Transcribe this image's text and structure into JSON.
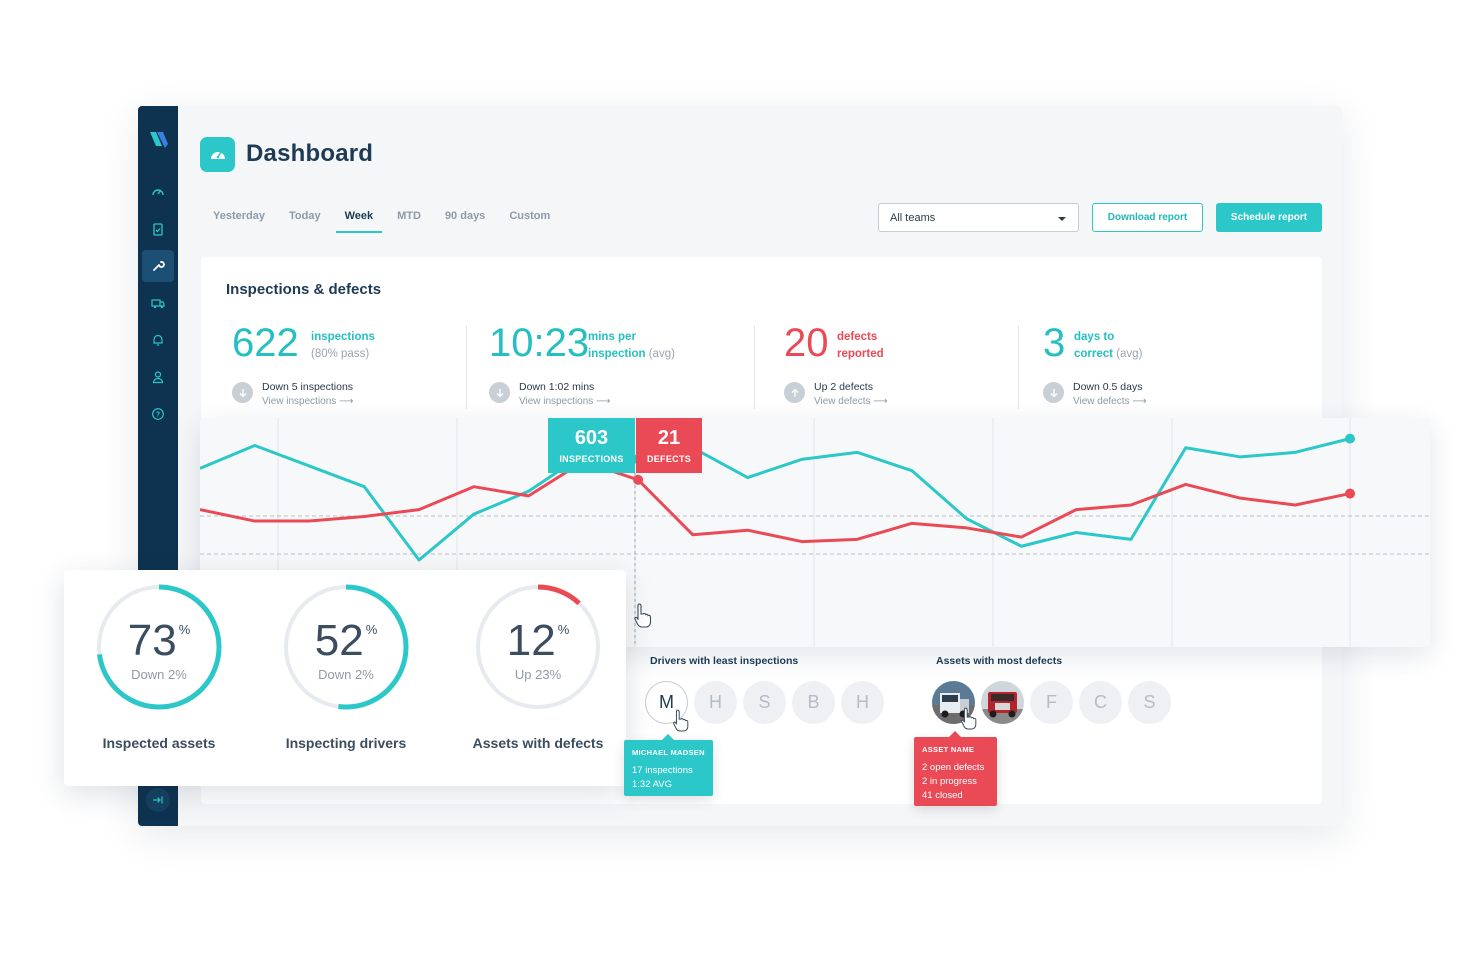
{
  "header": {
    "title": "Dashboard"
  },
  "tabs": [
    "Yesterday",
    "Today",
    "Week",
    "MTD",
    "90 days",
    "Custom"
  ],
  "active_tab": "Week",
  "team_select": {
    "value": "All teams"
  },
  "buttons": {
    "download": "Download report",
    "schedule": "Schedule report"
  },
  "card": {
    "title": "Inspections & defects",
    "stats": [
      {
        "value": "622",
        "label1": "inspections",
        "label2": "(80% pass)",
        "delta": "Down 5 inspections",
        "link": "View inspections",
        "color": "#25bfc2"
      },
      {
        "value": "10:23",
        "label1": "mins per",
        "label2a": "inspection",
        "label2b": "(avg)",
        "delta": "Down 1:02 mins",
        "link": "View inspections",
        "color": "#25bfc2"
      },
      {
        "value": "20",
        "label1": "defects",
        "label2": "reported",
        "delta": "Up 2 defects",
        "link": "View defects",
        "color": "#ea4a55"
      },
      {
        "value": "3",
        "label1": "days to",
        "label2a": "correct",
        "label2b": "(avg)",
        "delta": "Down 0.5 days",
        "link": "View defects",
        "color": "#25bfc2"
      }
    ],
    "drivers": {
      "title": "Drivers with least inspections",
      "initials": [
        "M",
        "H",
        "S",
        "B",
        "H"
      ]
    },
    "assets": {
      "title": "Assets with most defects",
      "initials": [
        "F",
        "C",
        "S"
      ]
    }
  },
  "chart_tooltip": {
    "inspections": "603",
    "inspections_label": "INSPECTIONS",
    "defects": "21",
    "defects_label": "DEFECTS"
  },
  "chart_data": {
    "type": "line",
    "series": [
      {
        "name": "Inspections",
        "color": "#2cc7c9",
        "values": [
          0.78,
          0.88,
          0.79,
          0.7,
          0.38,
          0.58,
          0.68,
          0.84,
          0.82,
          0.87,
          0.74,
          0.82,
          0.85,
          0.77,
          0.56,
          0.44,
          0.5,
          0.47,
          0.87,
          0.83,
          0.85,
          0.91
        ]
      },
      {
        "name": "Defects",
        "color": "#ea4a55",
        "values": [
          0.6,
          0.55,
          0.55,
          0.57,
          0.6,
          0.7,
          0.66,
          0.81,
          0.73,
          0.49,
          0.51,
          0.46,
          0.47,
          0.54,
          0.52,
          0.48,
          0.6,
          0.62,
          0.71,
          0.65,
          0.62,
          0.67
        ]
      }
    ]
  },
  "gauges": [
    {
      "value": "73",
      "sub": "Down 2%",
      "label": "Inspected assets",
      "percent": 73,
      "color": "#2cc7c9"
    },
    {
      "value": "52",
      "sub": "Down 2%",
      "label": "Inspecting drivers",
      "percent": 52,
      "color": "#2cc7c9"
    },
    {
      "value": "12",
      "sub": "Up 23%",
      "label": "Assets with defects",
      "percent": 12,
      "color": "#ea4a55"
    }
  ],
  "driver_tooltip": {
    "name": "MICHAEL MADSEN",
    "line1": "17 inspections",
    "line2": "1:32 AVG"
  },
  "asset_tooltip": {
    "name": "ASSET NAME",
    "line1": "2 open defects",
    "line2": "2 in progress",
    "line3": "41 closed"
  }
}
